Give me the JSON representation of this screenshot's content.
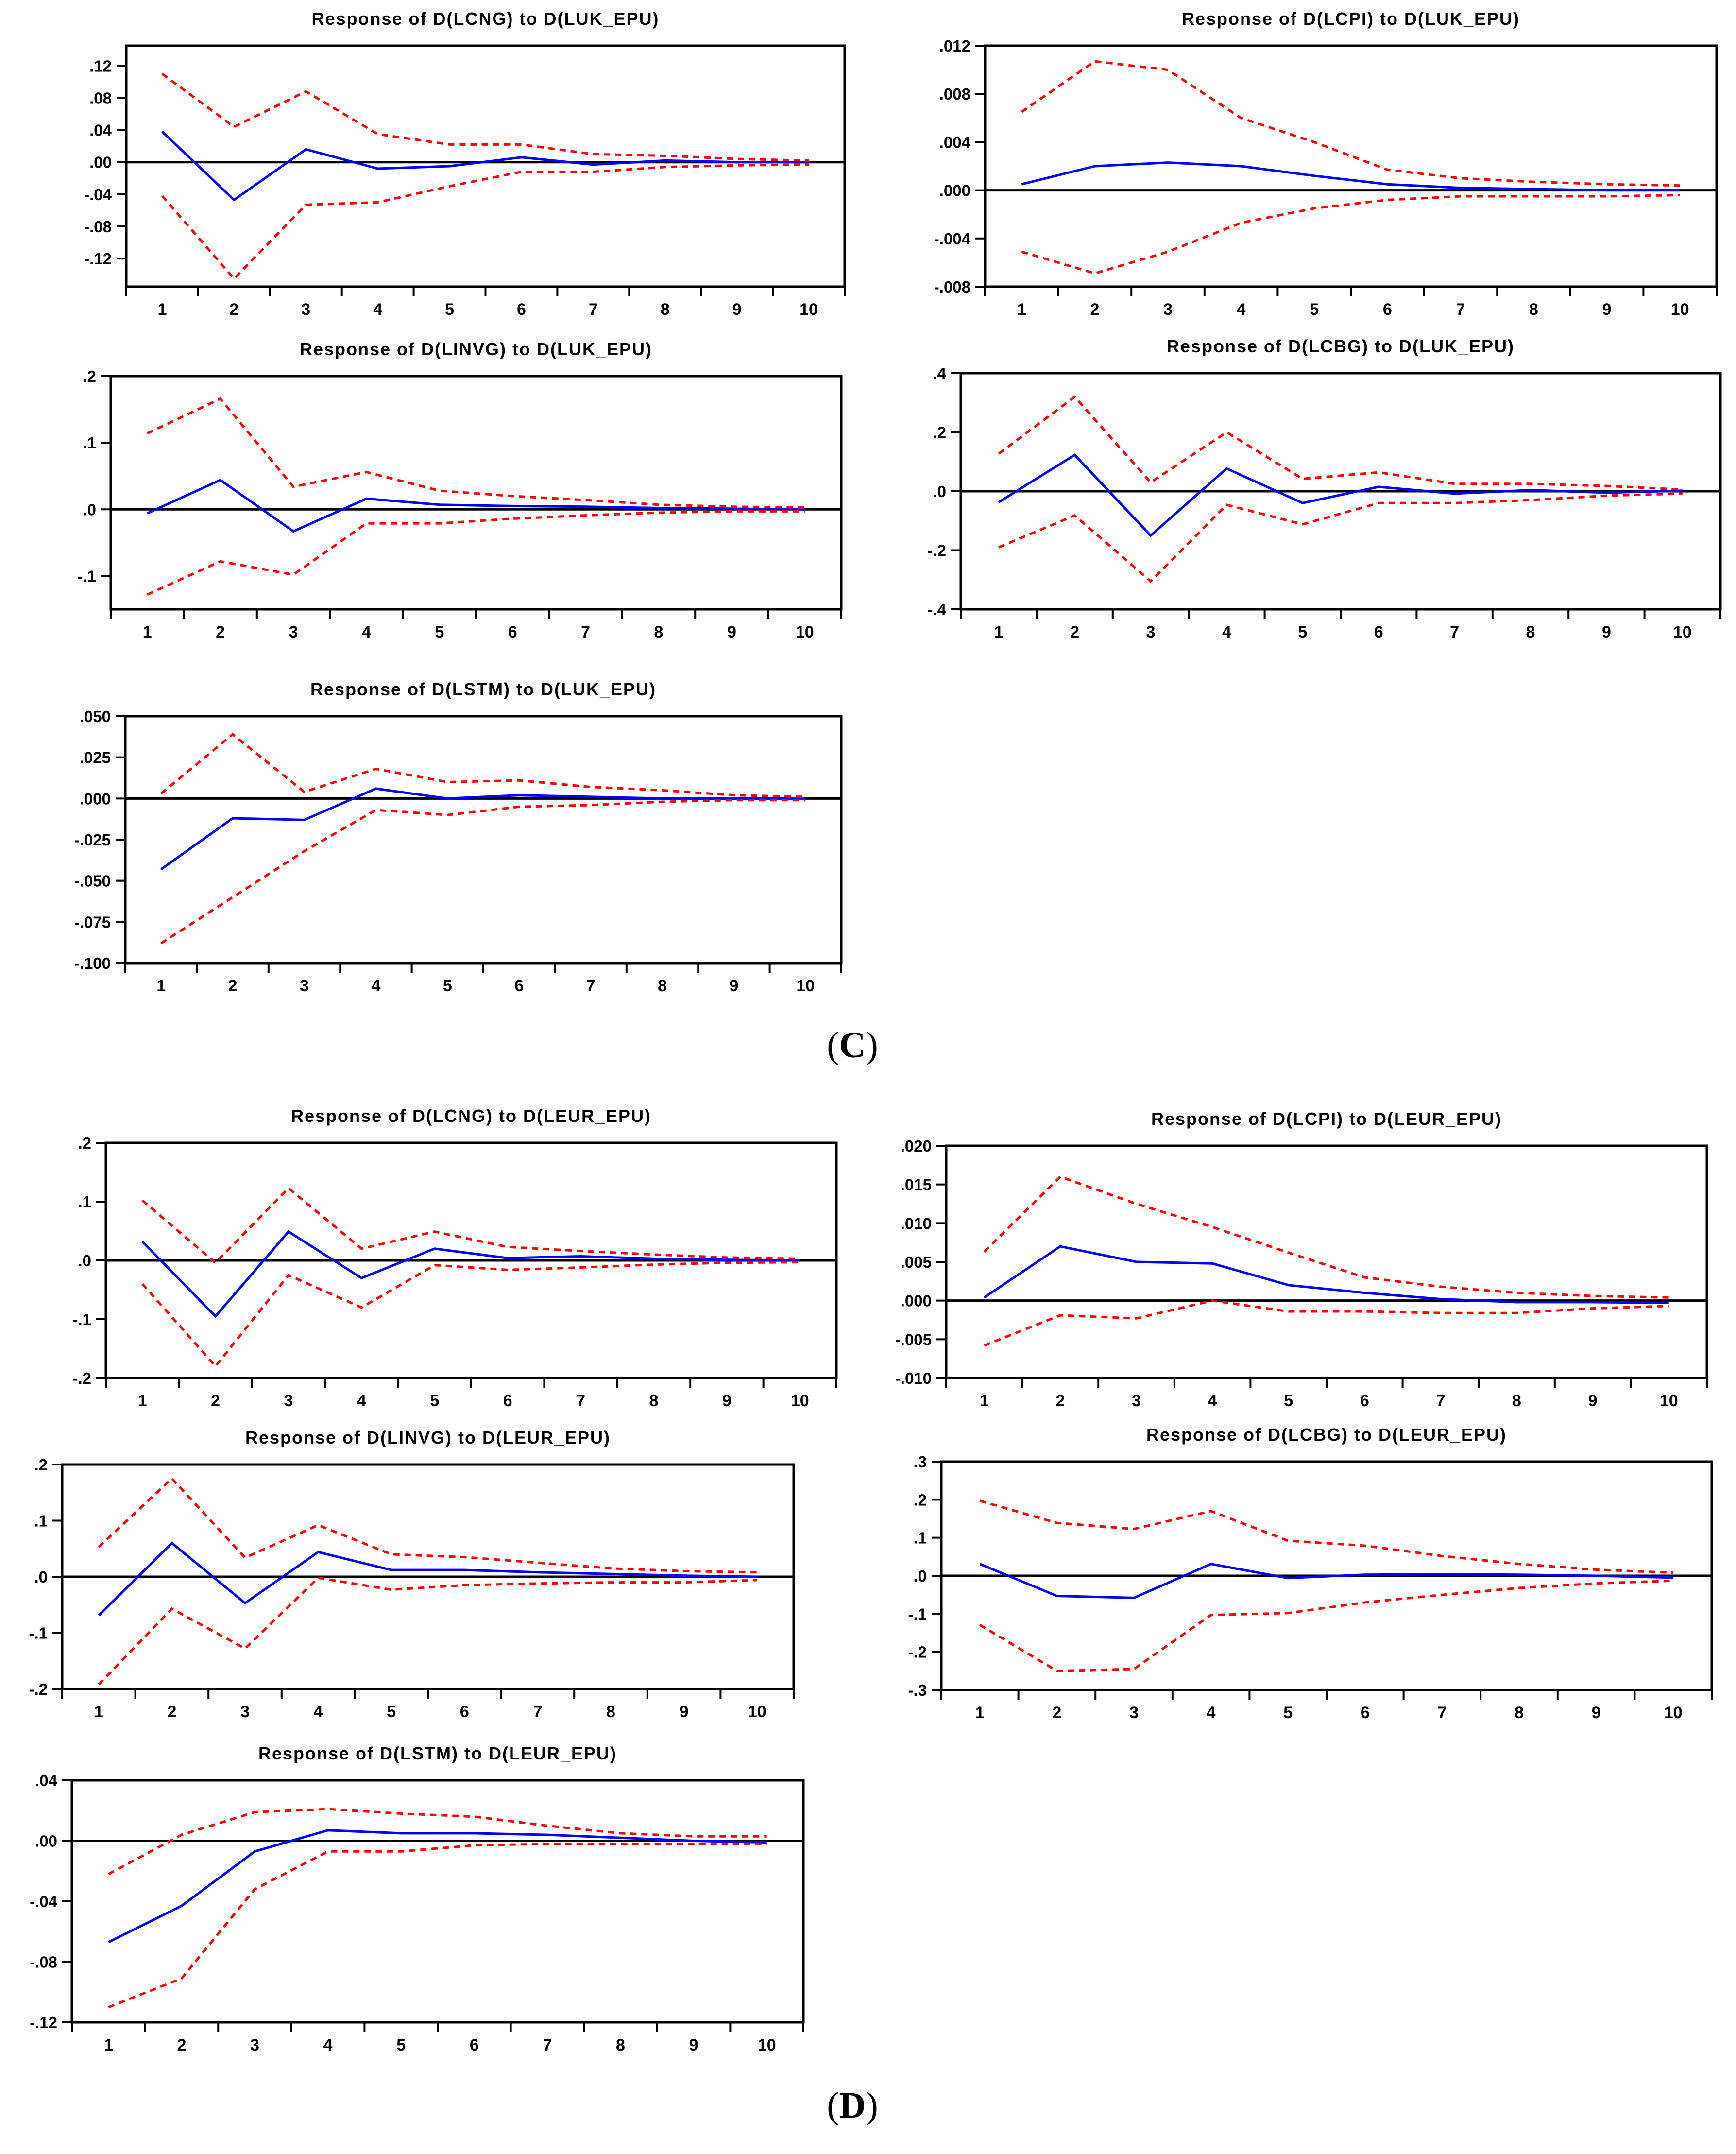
{
  "page": {
    "background": "#ffffff"
  },
  "colors": {
    "response_line": "#0000ff",
    "se_band": "#ff0000",
    "axis": "#000000",
    "text": "#000000"
  },
  "panel_labels": [
    {
      "open": "(",
      "letter": "C",
      "close": ")"
    },
    {
      "open": "(",
      "letter": "D",
      "close": ")"
    }
  ],
  "chart_data": [
    {
      "id": "response-dlcng-dluk-epu",
      "panel": "C",
      "type": "line",
      "title": "Response of D(LCNG) to D(LUK_EPU)",
      "x": [
        1,
        2,
        3,
        4,
        5,
        6,
        7,
        8,
        9,
        10
      ],
      "x_tick_labels": [
        "1",
        "2",
        "3",
        "4",
        "5",
        "6",
        "7",
        "8",
        "9",
        "10"
      ],
      "xlim": [
        0.5,
        10.5
      ],
      "ylim": [
        -0.155,
        0.145
      ],
      "y_ticks": [
        0.12,
        0.08,
        0.04,
        0.0,
        -0.04,
        -0.08,
        -0.12
      ],
      "y_tick_labels": [
        ".12",
        ".08",
        ".04",
        ".00",
        "-.04",
        "-.08",
        "-.12"
      ],
      "zero_line": true,
      "grid": false,
      "legend": "none",
      "series": [
        {
          "name": "response",
          "color": "#0000ff",
          "style": "solid",
          "values": [
            0.038,
            -0.047,
            0.016,
            -0.008,
            -0.005,
            0.006,
            -0.003,
            0.002,
            0.0,
            0.0
          ]
        },
        {
          "name": "upper-2se",
          "color": "#ff0000",
          "style": "dashed",
          "values": [
            0.11,
            0.044,
            0.088,
            0.035,
            0.022,
            0.022,
            0.01,
            0.008,
            0.004,
            0.002
          ]
        },
        {
          "name": "lower-2se",
          "color": "#ff0000",
          "style": "dashed",
          "values": [
            -0.042,
            -0.145,
            -0.053,
            -0.05,
            -0.03,
            -0.012,
            -0.012,
            -0.006,
            -0.004,
            -0.003
          ]
        }
      ]
    },
    {
      "id": "response-dlcpi-dluk-epu",
      "panel": "C",
      "type": "line",
      "title": "Response of D(LCPI) to D(LUK_EPU)",
      "x": [
        1,
        2,
        3,
        4,
        5,
        6,
        7,
        8,
        9,
        10
      ],
      "x_tick_labels": [
        "1",
        "2",
        "3",
        "4",
        "5",
        "6",
        "7",
        "8",
        "9",
        "10"
      ],
      "xlim": [
        0.5,
        10.5
      ],
      "ylim": [
        -0.008,
        0.012
      ],
      "y_ticks": [
        0.012,
        0.008,
        0.004,
        0.0,
        -0.004,
        -0.008
      ],
      "y_tick_labels": [
        ".012",
        ".008",
        ".004",
        ".000",
        "-.004",
        "-.008"
      ],
      "zero_line": true,
      "grid": false,
      "legend": "none",
      "series": [
        {
          "name": "response",
          "color": "#0000ff",
          "style": "solid",
          "values": [
            0.0005,
            0.002,
            0.0023,
            0.002,
            0.0012,
            0.0005,
            0.0002,
            0.0001,
            0.0,
            0.0
          ]
        },
        {
          "name": "upper-2se",
          "color": "#ff0000",
          "style": "dashed",
          "values": [
            0.0065,
            0.0107,
            0.01,
            0.006,
            0.004,
            0.0017,
            0.001,
            0.0007,
            0.0005,
            0.0004
          ]
        },
        {
          "name": "lower-2se",
          "color": "#ff0000",
          "style": "dashed",
          "values": [
            -0.0051,
            -0.0069,
            -0.0051,
            -0.0027,
            -0.0015,
            -0.0008,
            -0.0005,
            -0.0005,
            -0.0005,
            -0.0004
          ]
        }
      ]
    },
    {
      "id": "response-dlinvg-dluk-epu",
      "panel": "C",
      "type": "line",
      "title": "Response of D(LINVG) to D(LUK_EPU)",
      "x": [
        1,
        2,
        3,
        4,
        5,
        6,
        7,
        8,
        9,
        10
      ],
      "x_tick_labels": [
        "1",
        "2",
        "3",
        "4",
        "5",
        "6",
        "7",
        "8",
        "9",
        "10"
      ],
      "xlim": [
        0.5,
        10.5
      ],
      "ylim": [
        -0.15,
        0.2
      ],
      "y_ticks": [
        0.2,
        0.1,
        0.0,
        -0.1
      ],
      "y_tick_labels": [
        ".2",
        ".1",
        ".0",
        "-.1"
      ],
      "zero_line": true,
      "grid": false,
      "legend": "none",
      "series": [
        {
          "name": "response",
          "color": "#0000ff",
          "style": "solid",
          "values": [
            -0.006,
            0.044,
            -0.033,
            0.016,
            0.007,
            0.005,
            0.004,
            0.002,
            0.001,
            0.0
          ]
        },
        {
          "name": "upper-2se",
          "color": "#ff0000",
          "style": "dashed",
          "values": [
            0.114,
            0.166,
            0.034,
            0.056,
            0.028,
            0.02,
            0.014,
            0.007,
            0.004,
            0.003
          ]
        },
        {
          "name": "lower-2se",
          "color": "#ff0000",
          "style": "dashed",
          "values": [
            -0.128,
            -0.078,
            -0.098,
            -0.021,
            -0.021,
            -0.014,
            -0.009,
            -0.005,
            -0.003,
            -0.003
          ]
        }
      ]
    },
    {
      "id": "response-dlcbg-dluk-epu",
      "panel": "C",
      "type": "line",
      "title": "Response of D(LCBG) to D(LUK_EPU)",
      "x": [
        1,
        2,
        3,
        4,
        5,
        6,
        7,
        8,
        9,
        10
      ],
      "x_tick_labels": [
        "1",
        "2",
        "3",
        "4",
        "5",
        "6",
        "7",
        "8",
        "9",
        "10"
      ],
      "xlim": [
        0.5,
        10.5
      ],
      "ylim": [
        -0.4,
        0.4
      ],
      "y_ticks": [
        0.4,
        0.2,
        0.0,
        -0.2,
        -0.4
      ],
      "y_tick_labels": [
        ".4",
        ".2",
        ".0",
        "-.2",
        "-.4"
      ],
      "zero_line": true,
      "grid": false,
      "legend": "none",
      "series": [
        {
          "name": "response",
          "color": "#0000ff",
          "style": "solid",
          "values": [
            -0.037,
            0.123,
            -0.15,
            0.077,
            -0.04,
            0.015,
            -0.008,
            0.004,
            -0.005,
            0.002
          ]
        },
        {
          "name": "upper-2se",
          "color": "#ff0000",
          "style": "dashed",
          "values": [
            0.127,
            0.32,
            0.03,
            0.2,
            0.042,
            0.064,
            0.025,
            0.025,
            0.018,
            0.006
          ]
        },
        {
          "name": "lower-2se",
          "color": "#ff0000",
          "style": "dashed",
          "values": [
            -0.19,
            -0.082,
            -0.305,
            -0.046,
            -0.112,
            -0.04,
            -0.04,
            -0.03,
            -0.015,
            -0.008
          ]
        }
      ]
    },
    {
      "id": "response-dlstm-dluk-epu",
      "panel": "C",
      "type": "line",
      "title": "Response of D(LSTM) to D(LUK_EPU)",
      "x": [
        1,
        2,
        3,
        4,
        5,
        6,
        7,
        8,
        9,
        10
      ],
      "x_tick_labels": [
        "1",
        "2",
        "3",
        "4",
        "5",
        "6",
        "7",
        "8",
        "9",
        "10"
      ],
      "xlim": [
        0.5,
        10.5
      ],
      "ylim": [
        -0.1,
        0.05
      ],
      "y_ticks": [
        0.05,
        0.025,
        0.0,
        -0.025,
        -0.05,
        -0.075,
        -0.1
      ],
      "y_tick_labels": [
        ".050",
        ".025",
        ".000",
        "-.025",
        "-.050",
        "-.075",
        "-.100"
      ],
      "zero_line": true,
      "grid": false,
      "legend": "none",
      "series": [
        {
          "name": "response",
          "color": "#0000ff",
          "style": "solid",
          "values": [
            -0.043,
            -0.012,
            -0.013,
            0.006,
            0.0,
            0.002,
            0.001,
            0.0,
            0.0,
            0.0
          ]
        },
        {
          "name": "upper-2se",
          "color": "#ff0000",
          "style": "dashed",
          "values": [
            0.003,
            0.039,
            0.004,
            0.018,
            0.01,
            0.011,
            0.007,
            0.005,
            0.002,
            0.001
          ]
        },
        {
          "name": "lower-2se",
          "color": "#ff0000",
          "style": "dashed",
          "values": [
            -0.088,
            -0.06,
            -0.032,
            -0.007,
            -0.01,
            -0.005,
            -0.004,
            -0.002,
            -0.001,
            -0.001
          ]
        }
      ]
    },
    {
      "id": "response-dlcng-dleur-epu",
      "panel": "D",
      "type": "line",
      "title": "Response of D(LCNG) to D(LEUR_EPU)",
      "x": [
        1,
        2,
        3,
        4,
        5,
        6,
        7,
        8,
        9,
        10
      ],
      "x_tick_labels": [
        "1",
        "2",
        "3",
        "4",
        "5",
        "6",
        "7",
        "8",
        "9",
        "10"
      ],
      "xlim": [
        0.5,
        10.5
      ],
      "ylim": [
        -0.2,
        0.2
      ],
      "y_ticks": [
        0.2,
        0.1,
        0.0,
        -0.1,
        -0.2
      ],
      "y_tick_labels": [
        ".2",
        ".1",
        ".0",
        "-.1",
        "-.2"
      ],
      "zero_line": true,
      "grid": false,
      "legend": "none",
      "series": [
        {
          "name": "response",
          "color": "#0000ff",
          "style": "solid",
          "values": [
            0.032,
            -0.095,
            0.049,
            -0.03,
            0.02,
            0.004,
            0.007,
            0.003,
            0.001,
            0.0
          ]
        },
        {
          "name": "upper-2se",
          "color": "#ff0000",
          "style": "dashed",
          "values": [
            0.102,
            -0.004,
            0.123,
            0.02,
            0.049,
            0.023,
            0.016,
            0.01,
            0.005,
            0.003
          ]
        },
        {
          "name": "lower-2se",
          "color": "#ff0000",
          "style": "dashed",
          "values": [
            -0.04,
            -0.18,
            -0.025,
            -0.08,
            -0.008,
            -0.016,
            -0.012,
            -0.007,
            -0.004,
            -0.003
          ]
        }
      ]
    },
    {
      "id": "response-dlcpi-dleur-epu",
      "panel": "D",
      "type": "line",
      "title": "Response of D(LCPI) to D(LEUR_EPU)",
      "x": [
        1,
        2,
        3,
        4,
        5,
        6,
        7,
        8,
        9,
        10
      ],
      "x_tick_labels": [
        "1",
        "2",
        "3",
        "4",
        "5",
        "6",
        "7",
        "8",
        "9",
        "10"
      ],
      "xlim": [
        0.5,
        10.5
      ],
      "ylim": [
        -0.01,
        0.02
      ],
      "y_ticks": [
        0.02,
        0.015,
        0.01,
        0.005,
        0.0,
        -0.005,
        -0.01
      ],
      "y_tick_labels": [
        ".020",
        ".015",
        ".010",
        ".005",
        ".000",
        "-.005",
        "-.010"
      ],
      "zero_line": true,
      "grid": false,
      "legend": "none",
      "series": [
        {
          "name": "response",
          "color": "#0000ff",
          "style": "solid",
          "values": [
            0.0004,
            0.007,
            0.005,
            0.0048,
            0.002,
            0.001,
            0.0002,
            -0.0002,
            -0.0002,
            -0.0003
          ]
        },
        {
          "name": "upper-2se",
          "color": "#ff0000",
          "style": "dashed",
          "values": [
            0.0063,
            0.016,
            0.0125,
            0.0095,
            0.0062,
            0.003,
            0.0018,
            0.001,
            0.0006,
            0.0004
          ]
        },
        {
          "name": "lower-2se",
          "color": "#ff0000",
          "style": "dashed",
          "values": [
            -0.0058,
            -0.0019,
            -0.0023,
            0.0,
            -0.0014,
            -0.0014,
            -0.0016,
            -0.0016,
            -0.001,
            -0.0007
          ]
        }
      ]
    },
    {
      "id": "response-dlinvg-dleur-epu",
      "panel": "D",
      "type": "line",
      "title": "Response of D(LINVG) to D(LEUR_EPU)",
      "x": [
        1,
        2,
        3,
        4,
        5,
        6,
        7,
        8,
        9,
        10
      ],
      "x_tick_labels": [
        "1",
        "2",
        "3",
        "4",
        "5",
        "6",
        "7",
        "8",
        "9",
        "10"
      ],
      "xlim": [
        0.5,
        10.5
      ],
      "ylim": [
        -0.2,
        0.2
      ],
      "y_ticks": [
        0.2,
        0.1,
        0.0,
        -0.1,
        -0.2
      ],
      "y_tick_labels": [
        ".2",
        ".1",
        ".0",
        "-.1",
        "-.2"
      ],
      "zero_line": true,
      "grid": false,
      "legend": "none",
      "series": [
        {
          "name": "response",
          "color": "#0000ff",
          "style": "solid",
          "values": [
            -0.069,
            0.06,
            -0.047,
            0.044,
            0.012,
            0.012,
            0.008,
            0.005,
            0.002,
            0.0
          ]
        },
        {
          "name": "upper-2se",
          "color": "#ff0000",
          "style": "dashed",
          "values": [
            0.053,
            0.175,
            0.034,
            0.092,
            0.04,
            0.035,
            0.025,
            0.015,
            0.01,
            0.008
          ]
        },
        {
          "name": "lower-2se",
          "color": "#ff0000",
          "style": "dashed",
          "values": [
            -0.192,
            -0.057,
            -0.128,
            -0.002,
            -0.023,
            -0.015,
            -0.012,
            -0.01,
            -0.01,
            -0.006
          ]
        }
      ]
    },
    {
      "id": "response-dlcbg-dleur-epu",
      "panel": "D",
      "type": "line",
      "title": "Response of D(LCBG) to D(LEUR_EPU)",
      "x": [
        1,
        2,
        3,
        4,
        5,
        6,
        7,
        8,
        9,
        10
      ],
      "x_tick_labels": [
        "1",
        "2",
        "3",
        "4",
        "5",
        "6",
        "7",
        "8",
        "9",
        "10"
      ],
      "xlim": [
        0.5,
        10.5
      ],
      "ylim": [
        -0.3,
        0.3
      ],
      "y_ticks": [
        0.3,
        0.2,
        0.1,
        0.0,
        -0.1,
        -0.2,
        -0.3
      ],
      "y_tick_labels": [
        ".3",
        ".2",
        ".1",
        ".0",
        "-.1",
        "-.2",
        "-.3"
      ],
      "zero_line": true,
      "grid": false,
      "legend": "none",
      "series": [
        {
          "name": "response",
          "color": "#0000ff",
          "style": "solid",
          "values": [
            0.031,
            -0.053,
            -0.058,
            0.031,
            -0.006,
            0.003,
            0.004,
            0.003,
            0.0,
            -0.005
          ]
        },
        {
          "name": "upper-2se",
          "color": "#ff0000",
          "style": "dashed",
          "values": [
            0.197,
            0.139,
            0.123,
            0.17,
            0.092,
            0.079,
            0.052,
            0.031,
            0.016,
            0.008
          ]
        },
        {
          "name": "lower-2se",
          "color": "#ff0000",
          "style": "dashed",
          "values": [
            -0.129,
            -0.25,
            -0.245,
            -0.103,
            -0.098,
            -0.07,
            -0.05,
            -0.032,
            -0.02,
            -0.013
          ]
        }
      ]
    },
    {
      "id": "response-dlstm-dleur-epu",
      "panel": "D",
      "type": "line",
      "title": "Response of D(LSTM) to D(LEUR_EPU)",
      "x": [
        1,
        2,
        3,
        4,
        5,
        6,
        7,
        8,
        9,
        10
      ],
      "x_tick_labels": [
        "1",
        "2",
        "3",
        "4",
        "5",
        "6",
        "7",
        "8",
        "9",
        "10"
      ],
      "xlim": [
        0.5,
        10.5
      ],
      "ylim": [
        -0.12,
        0.04
      ],
      "y_ticks": [
        0.04,
        0.0,
        -0.04,
        -0.08,
        -0.12
      ],
      "y_tick_labels": [
        ".04",
        ".00",
        "-.04",
        "-.08",
        "-.12"
      ],
      "zero_line": true,
      "grid": false,
      "legend": "none",
      "series": [
        {
          "name": "response",
          "color": "#0000ff",
          "style": "solid",
          "values": [
            -0.067,
            -0.043,
            -0.007,
            0.007,
            0.005,
            0.005,
            0.004,
            0.002,
            0.0,
            -0.001
          ]
        },
        {
          "name": "upper-2se",
          "color": "#ff0000",
          "style": "dashed",
          "values": [
            -0.022,
            0.004,
            0.019,
            0.021,
            0.018,
            0.016,
            0.01,
            0.005,
            0.003,
            0.003
          ]
        },
        {
          "name": "lower-2se",
          "color": "#ff0000",
          "style": "dashed",
          "values": [
            -0.11,
            -0.091,
            -0.032,
            -0.007,
            -0.007,
            -0.003,
            -0.002,
            -0.002,
            -0.002,
            -0.002
          ]
        }
      ]
    }
  ]
}
